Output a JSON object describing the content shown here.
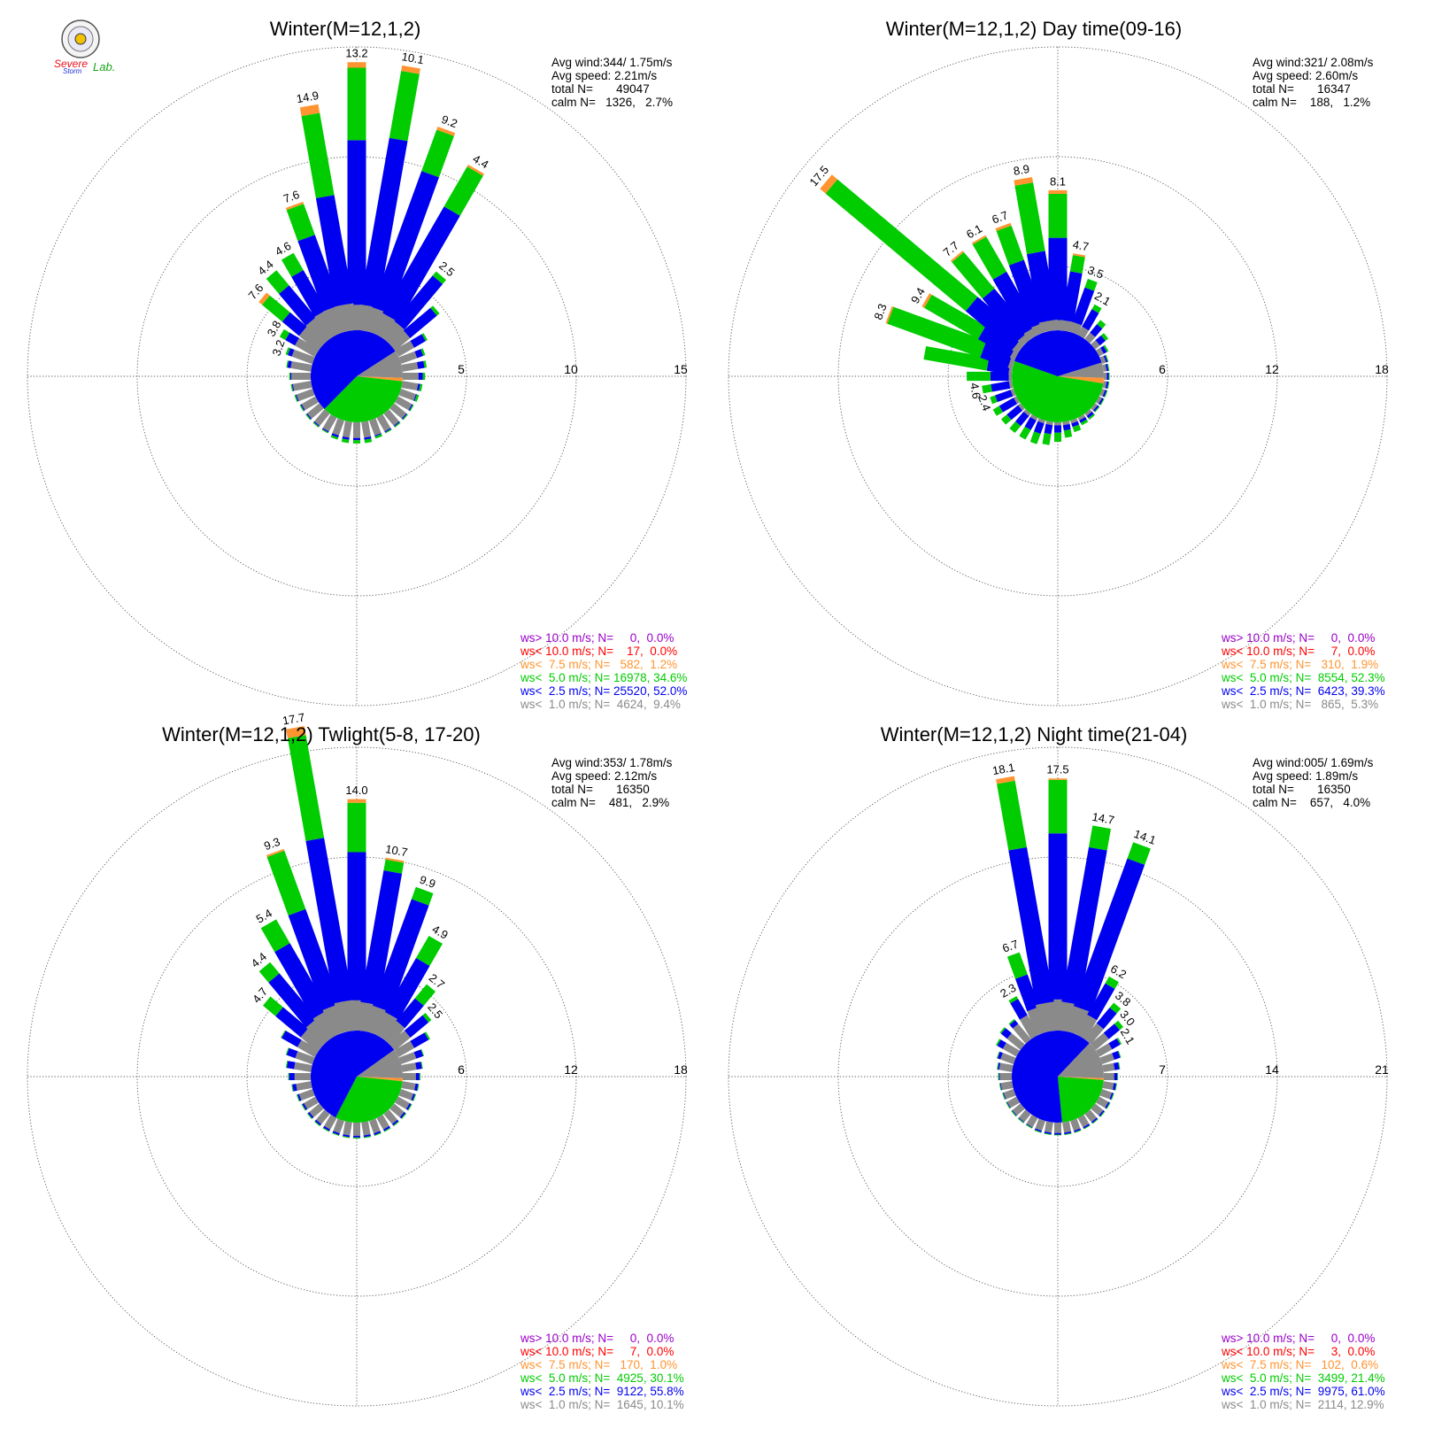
{
  "colors": {
    "purple": "#9a00c8",
    "red": "#ff0000",
    "orange": "#ff9430",
    "green": "#00cc00",
    "blue": "#0000f0",
    "gray": "#8a8a8a",
    "logo_red": "#e8111a",
    "logo_blue": "#1a2fd6",
    "logo_green": "#1aa31a"
  },
  "logo": {
    "text_severe": "Severe",
    "text_storm": "Storm",
    "text_lab": "Lab.",
    "icon": "seal-icon"
  },
  "chart_data": [
    {
      "type": "wind-rose",
      "title": "Winter(M=12,1,2)",
      "rmax": 15,
      "ring_labels": [
        "5",
        "10",
        "15"
      ],
      "stats": {
        "avg_wind": "Avg wind:344/ 1.75m/s",
        "avg_speed": "Avg speed: 2.21m/s",
        "total": "total N=       49047",
        "calm": "calm N=   1326,   2.7%"
      },
      "legend": [
        {
          "text": "ws> 10.0 m/s; N=     0,  0.0%",
          "color": "#9a00c8"
        },
        {
          "text": "ws< 10.0 m/s; N=    17,  0.0%",
          "color": "#ff0000"
        },
        {
          "text": "ws<  7.5 m/s; N=   582,  1.2%",
          "color": "#ff9430"
        },
        {
          "text": "ws<  5.0 m/s; N= 16978, 34.6%",
          "color": "#00cc00"
        },
        {
          "text": "ws<  2.5 m/s; N= 25520, 52.0%",
          "color": "#0000f0"
        },
        {
          "text": "ws<  1.0 m/s; N=  4624,  9.4%",
          "color": "#8a8a8a"
        }
      ],
      "directions_deg": [
        0,
        10,
        20,
        30,
        40,
        50,
        60,
        70,
        80,
        90,
        100,
        110,
        120,
        130,
        140,
        150,
        160,
        170,
        180,
        190,
        200,
        210,
        220,
        230,
        240,
        250,
        260,
        270,
        280,
        290,
        300,
        310,
        320,
        330,
        340,
        350
      ],
      "gray": [
        2.1,
        2.1,
        2.0,
        1.8,
        1.7,
        1.6,
        1.5,
        1.4,
        1.3,
        1.3,
        1.3,
        1.3,
        1.3,
        1.3,
        1.3,
        1.3,
        1.3,
        1.3,
        1.3,
        1.3,
        1.3,
        1.3,
        1.3,
        1.3,
        1.3,
        1.4,
        1.5,
        1.6,
        1.7,
        1.8,
        1.9,
        2.0,
        2.1,
        2.2,
        2.2,
        2.2
      ],
      "blue": [
        7.5,
        7.7,
        6.6,
        5.6,
        2.7,
        1.6,
        0.6,
        0.3,
        0.3,
        0.2,
        0.1,
        0.05,
        0.05,
        0.05,
        0.05,
        0.05,
        0.05,
        0.1,
        0.1,
        0.1,
        0.1,
        0.05,
        0.05,
        0.05,
        0.05,
        0.05,
        0.05,
        0.05,
        0.15,
        0.2,
        0.5,
        1.0,
        1.9,
        2.1,
        3.4,
        5.0
      ],
      "green": [
        3.3,
        3.1,
        2.0,
        2.1,
        0.25,
        0.15,
        0.1,
        0.1,
        0.1,
        0.1,
        0.1,
        0.1,
        0.05,
        0.05,
        0.05,
        0.05,
        0.1,
        0.15,
        0.15,
        0.15,
        0.1,
        0.05,
        0.05,
        0.05,
        0.05,
        0.05,
        0.05,
        0.05,
        0.05,
        0.1,
        0.3,
        1.2,
        0.9,
        0.9,
        1.5,
        3.8
      ],
      "orange": [
        0.25,
        0.25,
        0.15,
        0.1,
        0.0,
        0.0,
        0.0,
        0.0,
        0.0,
        0.0,
        0.0,
        0.0,
        0.0,
        0.0,
        0.0,
        0.0,
        0.0,
        0.0,
        0.0,
        0.0,
        0.0,
        0.0,
        0.0,
        0.0,
        0.0,
        0.0,
        0.0,
        0.0,
        0.0,
        0.0,
        0.0,
        0.2,
        0.0,
        0.0,
        0.1,
        0.4
      ],
      "labels": {
        "0": "13.2",
        "10": "10.1",
        "20": "9.2",
        "30": "4.4",
        "40": "2.5",
        "290": "3.2",
        "300": "3.8",
        "310": "7.6",
        "320": "4.4",
        "330": "4.6",
        "340": "7.6",
        "350": "14.9"
      }
    },
    {
      "type": "wind-rose",
      "title": "Winter(M=12,1,2) Day time(09-16)",
      "rmax": 18,
      "ring_labels": [
        "6",
        "12",
        "18"
      ],
      "stats": {
        "avg_wind": "Avg wind:321/ 2.08m/s",
        "avg_speed": "Avg speed: 2.60m/s",
        "total": "total N=       16347",
        "calm": "calm N=    188,   1.2%"
      },
      "legend": [
        {
          "text": "ws> 10.0 m/s; N=     0,  0.0%",
          "color": "#9a00c8"
        },
        {
          "text": "ws< 10.0 m/s; N=     7,  0.0%",
          "color": "#ff0000"
        },
        {
          "text": "ws<  7.5 m/s; N=   310,  1.9%",
          "color": "#ff9430"
        },
        {
          "text": "ws<  5.0 m/s; N=  8554, 52.3%",
          "color": "#00cc00"
        },
        {
          "text": "ws<  2.5 m/s; N=  6423, 39.3%",
          "color": "#0000f0"
        },
        {
          "text": "ws<  1.0 m/s; N=   865,  5.3%",
          "color": "#8a8a8a"
        }
      ],
      "directions_deg": [
        0,
        10,
        20,
        30,
        40,
        50,
        60,
        70,
        80,
        90,
        100,
        110,
        120,
        130,
        140,
        150,
        160,
        170,
        180,
        190,
        200,
        210,
        220,
        230,
        240,
        250,
        260,
        270,
        280,
        290,
        300,
        310,
        320,
        330,
        340,
        350
      ],
      "gray": [
        1.0,
        1.0,
        1.0,
        0.9,
        0.8,
        0.6,
        0.5,
        0.4,
        0.3,
        0.3,
        0.3,
        0.3,
        0.3,
        0.3,
        0.3,
        0.3,
        0.3,
        0.3,
        0.3,
        0.3,
        0.3,
        0.3,
        0.3,
        0.3,
        0.3,
        0.3,
        0.3,
        0.3,
        0.3,
        0.4,
        0.5,
        0.6,
        0.7,
        0.8,
        0.9,
        1.0
      ],
      "blue": [
        4.5,
        2.7,
        2.0,
        1.1,
        0.6,
        0.4,
        0.2,
        0.1,
        0.1,
        0.1,
        0.1,
        0.1,
        0.1,
        0.1,
        0.15,
        0.15,
        0.2,
        0.3,
        0.4,
        0.5,
        0.6,
        0.6,
        0.7,
        0.8,
        0.9,
        0.9,
        1.0,
        1.0,
        1.2,
        1.6,
        2.0,
        3.3,
        3.0,
        3.4,
        3.6,
        3.8
      ],
      "green": [
        2.4,
        0.9,
        0.5,
        0.3,
        0.3,
        0.2,
        0.1,
        0.05,
        0.05,
        0.05,
        0.05,
        0.05,
        0.05,
        0.05,
        0.1,
        0.15,
        0.3,
        0.4,
        0.5,
        0.6,
        0.6,
        0.6,
        0.5,
        0.4,
        0.4,
        0.3,
        0.5,
        1.3,
        3.5,
        5.4,
        3.4,
        10.0,
        2.6,
        2.2,
        2.0,
        3.8
      ],
      "orange": [
        0.2,
        0.1,
        0.0,
        0.0,
        0.0,
        0.0,
        0.0,
        0.0,
        0.0,
        0.0,
        0.0,
        0.0,
        0.0,
        0.0,
        0.0,
        0.0,
        0.0,
        0.0,
        0.0,
        0.0,
        0.0,
        0.0,
        0.0,
        0.0,
        0.0,
        0.0,
        0.0,
        0.0,
        0.0,
        0.1,
        0.15,
        0.4,
        0.1,
        0.1,
        0.15,
        0.3
      ],
      "labels": {
        "0": "8.1",
        "10": "4.7",
        "20": "3.5",
        "30": "2.1",
        "250": "2.4",
        "260": "4.6",
        "290": "8.3",
        "300": "9.4",
        "310": "17.5",
        "320": "7.7",
        "330": "6.1",
        "340": "6.7",
        "350": "8.9"
      }
    },
    {
      "type": "wind-rose",
      "title": "Winter(M=12,1,2) Twlight(5-8, 17-20)",
      "rmax": 18,
      "ring_labels": [
        "6",
        "12",
        "18"
      ],
      "stats": {
        "avg_wind": "Avg wind:353/ 1.78m/s",
        "avg_speed": "Avg speed: 2.12m/s",
        "total": "total N=       16350",
        "calm": "calm N=    481,   2.9%"
      },
      "legend": [
        {
          "text": "ws> 10.0 m/s; N=     0,  0.0%",
          "color": "#9a00c8"
        },
        {
          "text": "ws< 10.0 m/s; N=     7,  0.0%",
          "color": "#ff0000"
        },
        {
          "text": "ws<  7.5 m/s; N=   170,  1.0%",
          "color": "#ff9430"
        },
        {
          "text": "ws<  5.0 m/s; N=  4925, 30.1%",
          "color": "#00cc00"
        },
        {
          "text": "ws<  2.5 m/s; N=  9122, 55.8%",
          "color": "#0000f0"
        },
        {
          "text": "ws<  1.0 m/s; N=  1645, 10.1%",
          "color": "#8a8a8a"
        }
      ],
      "directions_deg": [
        0,
        10,
        20,
        30,
        40,
        50,
        60,
        70,
        80,
        90,
        100,
        110,
        120,
        130,
        140,
        150,
        160,
        170,
        180,
        190,
        200,
        210,
        220,
        230,
        240,
        250,
        260,
        270,
        280,
        290,
        300,
        310,
        320,
        330,
        340,
        350
      ],
      "gray": [
        3.0,
        2.8,
        2.6,
        2.4,
        2.2,
        2.0,
        1.8,
        1.6,
        1.4,
        1.3,
        1.3,
        1.3,
        1.3,
        1.3,
        1.3,
        1.3,
        1.3,
        1.3,
        1.3,
        1.3,
        1.3,
        1.3,
        1.3,
        1.3,
        1.3,
        1.4,
        1.5,
        1.6,
        1.7,
        1.8,
        2.0,
        2.2,
        2.4,
        2.6,
        2.8,
        3.0
      ],
      "blue": [
        8.1,
        7.3,
        6.2,
        3.4,
        1.6,
        1.3,
        0.9,
        0.4,
        0.3,
        0.2,
        0.15,
        0.1,
        0.1,
        0.1,
        0.1,
        0.1,
        0.1,
        0.1,
        0.1,
        0.1,
        0.1,
        0.1,
        0.1,
        0.1,
        0.1,
        0.1,
        0.2,
        0.3,
        0.4,
        0.5,
        1.0,
        1.8,
        3.2,
        4.2,
        5.5,
        9.0
      ],
      "green": [
        2.7,
        0.6,
        0.7,
        1.4,
        1.0,
        0.2,
        0.1,
        0.05,
        0.05,
        0.05,
        0.05,
        0.05,
        0.05,
        0.05,
        0.05,
        0.05,
        0.05,
        0.05,
        0.05,
        0.05,
        0.05,
        0.05,
        0.05,
        0.05,
        0.05,
        0.05,
        0.05,
        0.05,
        0.05,
        0.05,
        0.05,
        0.9,
        0.8,
        1.5,
        3.4,
        5.7
      ],
      "orange": [
        0.2,
        0.1,
        0.0,
        0.0,
        0.0,
        0.0,
        0.0,
        0.0,
        0.0,
        0.0,
        0.0,
        0.0,
        0.0,
        0.0,
        0.0,
        0.0,
        0.0,
        0.0,
        0.0,
        0.0,
        0.0,
        0.0,
        0.0,
        0.0,
        0.0,
        0.0,
        0.0,
        0.0,
        0.0,
        0.0,
        0.0,
        0.0,
        0.0,
        0.0,
        0.1,
        0.5
      ],
      "labels": {
        "0": "14.0",
        "10": "10.7",
        "20": "9.9",
        "30": "4.9",
        "40": "2.7",
        "50": "2.5",
        "310": "4.7",
        "320": "4.4",
        "330": "5.4",
        "340": "9.3",
        "350": "17.7"
      }
    },
    {
      "type": "wind-rose",
      "title": "Winter(M=12,1,2) Night time(21-04)",
      "rmax": 21,
      "ring_labels": [
        "7",
        "14",
        "21"
      ],
      "stats": {
        "avg_wind": "Avg wind:005/ 1.69m/s",
        "avg_speed": "Avg speed: 1.89m/s",
        "total": "total N=       16350",
        "calm": "calm N=    657,   4.0%"
      },
      "legend": [
        {
          "text": "ws> 10.0 m/s; N=     0,  0.0%",
          "color": "#9a00c8"
        },
        {
          "text": "ws< 10.0 m/s; N=     3,  0.0%",
          "color": "#ff0000"
        },
        {
          "text": "ws<  7.5 m/s; N=   102,  0.6%",
          "color": "#ff9430"
        },
        {
          "text": "ws<  5.0 m/s; N=  3499, 21.4%",
          "color": "#00cc00"
        },
        {
          "text": "ws<  2.5 m/s; N=  9975, 61.0%",
          "color": "#0000f0"
        },
        {
          "text": "ws<  1.0 m/s; N=  2114, 12.9%",
          "color": "#8a8a8a"
        }
      ],
      "directions_deg": [
        0,
        10,
        20,
        30,
        40,
        50,
        60,
        70,
        80,
        90,
        100,
        110,
        120,
        130,
        140,
        150,
        160,
        170,
        180,
        190,
        200,
        210,
        220,
        230,
        240,
        250,
        260,
        270,
        280,
        290,
        300,
        310,
        320,
        330,
        340,
        350
      ],
      "gray": [
        3.6,
        3.3,
        3.0,
        2.6,
        2.3,
        2.0,
        1.7,
        1.5,
        1.3,
        1.2,
        1.2,
        1.2,
        1.2,
        1.2,
        1.2,
        1.2,
        1.2,
        1.2,
        1.2,
        1.2,
        1.2,
        1.2,
        1.2,
        1.2,
        1.2,
        1.2,
        1.3,
        1.4,
        1.5,
        1.6,
        1.8,
        2.0,
        2.3,
        2.6,
        3.0,
        3.3
      ],
      "blue": [
        10.6,
        10.0,
        10.0,
        2.3,
        1.3,
        0.9,
        0.6,
        0.4,
        0.3,
        0.2,
        0.15,
        0.1,
        0.1,
        0.1,
        0.1,
        0.1,
        0.1,
        0.1,
        0.1,
        0.1,
        0.1,
        0.05,
        0.05,
        0.05,
        0.05,
        0.05,
        0.05,
        0.05,
        0.1,
        0.2,
        0.4,
        0.5,
        0.3,
        1.2,
        2.2,
        10.0
      ],
      "green": [
        3.4,
        1.4,
        1.1,
        0.5,
        0.4,
        0.3,
        0.1,
        0.05,
        0.05,
        0.05,
        0.05,
        0.05,
        0.05,
        0.05,
        0.05,
        0.05,
        0.05,
        0.05,
        0.05,
        0.05,
        0.05,
        0.05,
        0.05,
        0.05,
        0.05,
        0.05,
        0.05,
        0.05,
        0.05,
        0.05,
        0.1,
        0.1,
        0.1,
        0.2,
        1.5,
        4.3
      ],
      "orange": [
        0.1,
        0.0,
        0.0,
        0.0,
        0.0,
        0.0,
        0.0,
        0.0,
        0.0,
        0.0,
        0.0,
        0.0,
        0.0,
        0.0,
        0.0,
        0.0,
        0.0,
        0.0,
        0.0,
        0.0,
        0.0,
        0.0,
        0.0,
        0.0,
        0.0,
        0.0,
        0.0,
        0.0,
        0.0,
        0.0,
        0.0,
        0.0,
        0.0,
        0.0,
        0.0,
        0.3
      ],
      "labels": {
        "0": "17.5",
        "10": "14.7",
        "20": "14.1",
        "30": "6.2",
        "40": "3.8",
        "50": "3.0",
        "60": "2.1",
        "330": "2.3",
        "340": "6.7",
        "350": "18.1"
      }
    }
  ]
}
